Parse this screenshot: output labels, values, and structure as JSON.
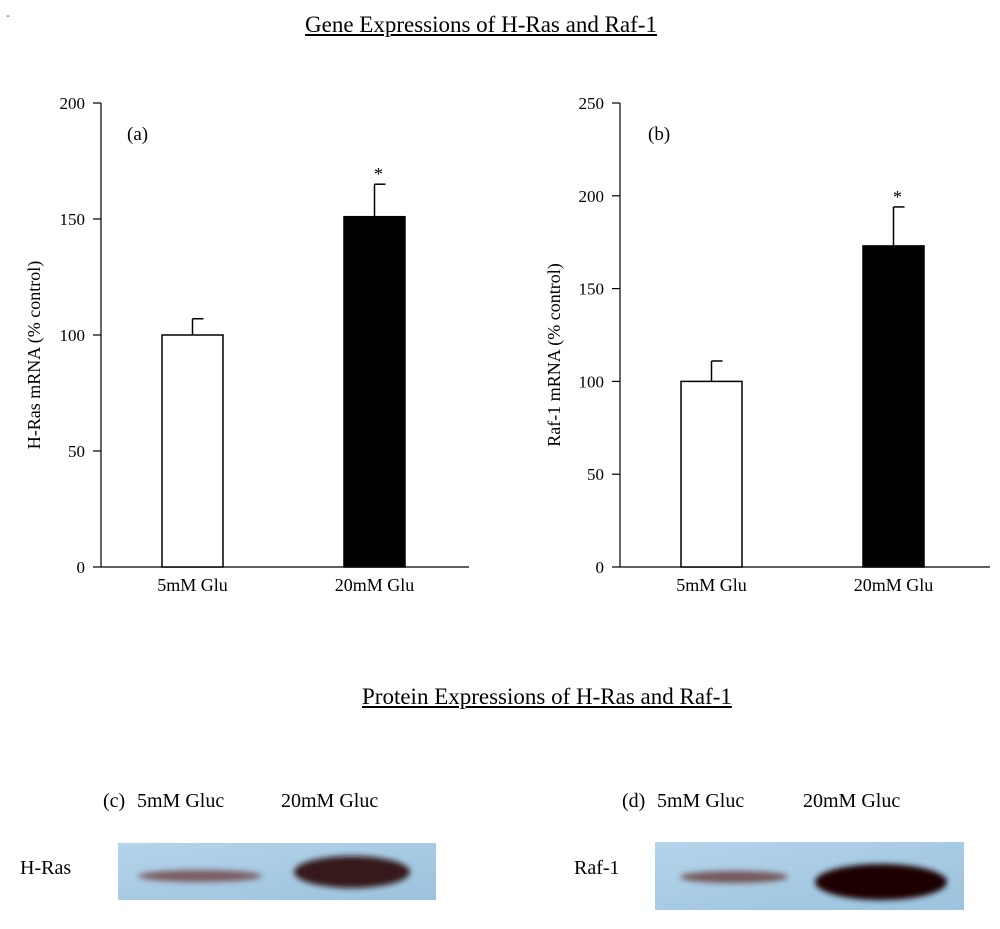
{
  "mark": "-",
  "titles": {
    "gene": "Gene Expressions of H-Ras and Raf-1",
    "protein": "Protein Expressions of H-Ras and Raf-1"
  },
  "chart_data": [
    {
      "type": "bar",
      "panel": "(a)",
      "categories": [
        "5mM Glu",
        "20mM Glu"
      ],
      "values": [
        100,
        151
      ],
      "errors": [
        7,
        14
      ],
      "significance": [
        "",
        "*"
      ],
      "bar_colors": [
        "#ffffff",
        "#000000"
      ],
      "ylabel": "H-Ras mRNA (% control)",
      "ylim": [
        0,
        200
      ],
      "yticks": [
        0,
        50,
        100,
        150,
        200
      ]
    },
    {
      "type": "bar",
      "panel": "(b)",
      "categories": [
        "5mM Glu",
        "20mM Glu"
      ],
      "values": [
        100,
        173
      ],
      "errors": [
        11,
        21
      ],
      "significance": [
        "",
        "*"
      ],
      "bar_colors": [
        "#ffffff",
        "#000000"
      ],
      "ylabel": "Raf-1 mRNA (% control)",
      "ylim": [
        0,
        250
      ],
      "yticks": [
        0,
        50,
        100,
        150,
        200,
        250
      ]
    }
  ],
  "blots": [
    {
      "panel": "(c)",
      "lanes": [
        "5mM Gluc",
        "20mM Gluc"
      ],
      "protein": "H-Ras",
      "band_intensity": [
        0.35,
        0.85
      ]
    },
    {
      "panel": "(d)",
      "lanes": [
        "5mM Gluc",
        "20mM Gluc"
      ],
      "protein": "Raf-1",
      "band_intensity": [
        0.4,
        1.0
      ]
    }
  ]
}
